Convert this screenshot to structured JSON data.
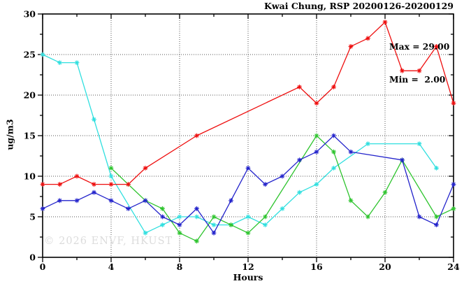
{
  "watermark": "© 2026 ENVF, HKUST",
  "chart_data": {
    "type": "line",
    "title": "Kwai Chung, RSP 20200126-20200129",
    "xlabel": "Hours",
    "ylabel": "ug/m3",
    "xlim": [
      0,
      24
    ],
    "ylim": [
      0,
      30
    ],
    "x_major_ticks": [
      0,
      4,
      8,
      12,
      16,
      20,
      24
    ],
    "x_minor_ticks": [
      2,
      6,
      10,
      14,
      18,
      22
    ],
    "y_major_ticks": [
      0,
      5,
      10,
      15,
      20,
      25,
      30
    ],
    "y_minor_ticks": [
      2.5,
      7.5,
      12.5,
      17.5,
      22.5,
      27.5
    ],
    "grid": {
      "x": [
        4,
        8,
        12,
        16,
        20
      ],
      "y": [
        5,
        10,
        15,
        20,
        25
      ],
      "style": "dotted"
    },
    "legend_position": "top-right-inside",
    "annotations": [
      "Max = 29.00",
      "Min =  2.00"
    ],
    "stats": {
      "max": 29.0,
      "min": 2.0
    },
    "series": [
      {
        "name": "series-cyan",
        "color": "#30dfdf",
        "points": [
          [
            0,
            25
          ],
          [
            1,
            24
          ],
          [
            2,
            24
          ],
          [
            3,
            17
          ],
          [
            4,
            10
          ],
          [
            6,
            3
          ],
          [
            7,
            4
          ],
          [
            8,
            5
          ],
          [
            9,
            5
          ],
          [
            10,
            4
          ],
          [
            11,
            4
          ],
          [
            12,
            5
          ],
          [
            13,
            4
          ],
          [
            14,
            6
          ],
          [
            15,
            8
          ],
          [
            16,
            9
          ],
          [
            17,
            11
          ],
          [
            19,
            14
          ],
          [
            22,
            14
          ],
          [
            23,
            11
          ]
        ]
      },
      {
        "name": "series-green",
        "color": "#2ec42e",
        "points": [
          [
            4,
            11
          ],
          [
            5,
            9
          ],
          [
            6,
            7
          ],
          [
            7,
            6
          ],
          [
            8,
            3
          ],
          [
            9,
            2
          ],
          [
            10,
            5
          ],
          [
            11,
            4
          ],
          [
            12,
            3
          ],
          [
            13,
            5
          ],
          [
            16,
            15
          ],
          [
            17,
            13
          ],
          [
            18,
            7
          ],
          [
            19,
            5
          ],
          [
            20,
            8
          ],
          [
            21,
            12
          ],
          [
            23,
            5
          ],
          [
            24,
            6
          ]
        ]
      },
      {
        "name": "series-blue",
        "color": "#2323cb",
        "points": [
          [
            0,
            6
          ],
          [
            1,
            7
          ],
          [
            2,
            7
          ],
          [
            3,
            8
          ],
          [
            4,
            7
          ],
          [
            5,
            6
          ],
          [
            6,
            7
          ],
          [
            7,
            5
          ],
          [
            8,
            4
          ],
          [
            9,
            6
          ],
          [
            10,
            3
          ],
          [
            11,
            7
          ],
          [
            12,
            11
          ],
          [
            13,
            9
          ],
          [
            14,
            10
          ],
          [
            15,
            12
          ],
          [
            16,
            13
          ],
          [
            17,
            15
          ],
          [
            18,
            13
          ],
          [
            21,
            12
          ],
          [
            22,
            5
          ],
          [
            23,
            4
          ],
          [
            24,
            9
          ]
        ]
      },
      {
        "name": "series-red",
        "color": "#ee0e0e",
        "points": [
          [
            0,
            9
          ],
          [
            1,
            9
          ],
          [
            2,
            10
          ],
          [
            3,
            9
          ],
          [
            4,
            9
          ],
          [
            5,
            9
          ],
          [
            6,
            11
          ],
          [
            9,
            15
          ],
          [
            15,
            21
          ],
          [
            16,
            19
          ],
          [
            17,
            21
          ],
          [
            18,
            26
          ],
          [
            19,
            27
          ],
          [
            20,
            29
          ],
          [
            21,
            23
          ],
          [
            22,
            23
          ],
          [
            23,
            26
          ],
          [
            24,
            19
          ]
        ]
      }
    ]
  }
}
